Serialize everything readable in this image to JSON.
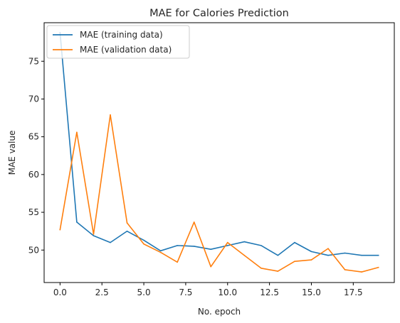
{
  "chart_data": {
    "type": "line",
    "title": "MAE for Calories Prediction",
    "xlabel": "No. epoch",
    "ylabel": "MAE value",
    "xlim": [
      -0.95,
      19.95
    ],
    "ylim": [
      45.7,
      80.1
    ],
    "x_ticks": [
      0.0,
      2.5,
      5.0,
      7.5,
      10.0,
      12.5,
      15.0,
      17.5
    ],
    "x_tick_labels": [
      "0.0",
      "2.5",
      "5.0",
      "7.5",
      "10.0",
      "12.5",
      "15.0",
      "17.5"
    ],
    "y_ticks": [
      50,
      55,
      60,
      65,
      70,
      75
    ],
    "y_tick_labels": [
      "50",
      "55",
      "60",
      "65",
      "70",
      "75"
    ],
    "grid": false,
    "legend_position": "top-left",
    "x": [
      0,
      1,
      2,
      3,
      4,
      5,
      6,
      7,
      8,
      9,
      10,
      11,
      12,
      13,
      14,
      15,
      16,
      17,
      18,
      19
    ],
    "series": [
      {
        "name": "MAE (training data)",
        "color": "#1f77b4",
        "values": [
          78.8,
          53.7,
          51.9,
          51.0,
          52.5,
          51.3,
          49.9,
          50.6,
          50.5,
          50.1,
          50.6,
          51.1,
          50.6,
          49.3,
          51.0,
          49.8,
          49.3,
          49.6,
          49.3,
          49.3
        ]
      },
      {
        "name": "MAE (validation data)",
        "color": "#ff7f0e",
        "values": [
          52.7,
          65.6,
          52.1,
          67.9,
          53.6,
          50.8,
          49.7,
          48.4,
          53.7,
          47.8,
          51.0,
          49.3,
          47.6,
          47.2,
          48.5,
          48.7,
          50.2,
          47.4,
          47.1,
          47.7
        ]
      }
    ]
  }
}
